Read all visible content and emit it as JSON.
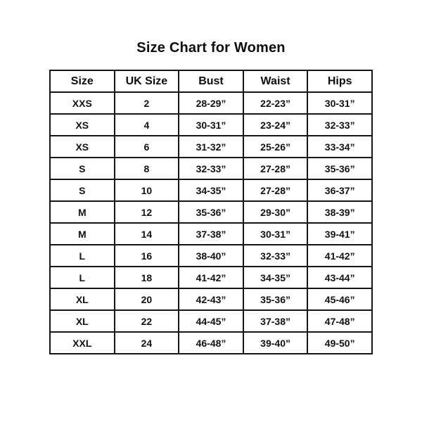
{
  "page": {
    "title": "Size Chart for Women"
  },
  "chart_data": {
    "type": "table",
    "title": "Size Chart for Women",
    "columns": [
      "Size",
      "UK Size",
      "Bust",
      "Waist",
      "Hips"
    ],
    "rows": [
      [
        "XXS",
        "2",
        "28-29”",
        "22-23”",
        "30-31”"
      ],
      [
        "XS",
        "4",
        "30-31”",
        "23-24”",
        "32-33”"
      ],
      [
        "XS",
        "6",
        "31-32”",
        "25-26”",
        "33-34”"
      ],
      [
        "S",
        "8",
        "32-33”",
        "27-28”",
        "35-36”"
      ],
      [
        "S",
        "10",
        "34-35”",
        "27-28”",
        "36-37”"
      ],
      [
        "M",
        "12",
        "35-36”",
        "29-30”",
        "38-39”"
      ],
      [
        "M",
        "14",
        "37-38”",
        "30-31”",
        "39-41”"
      ],
      [
        "L",
        "16",
        "38-40”",
        "32-33”",
        "41-42”"
      ],
      [
        "L",
        "18",
        "41-42”",
        "34-35”",
        "43-44”"
      ],
      [
        "XL",
        "20",
        "42-43”",
        "35-36”",
        "45-46”"
      ],
      [
        "XL",
        "22",
        "44-45”",
        "37-38”",
        "47-48”"
      ],
      [
        "XXL",
        "24",
        "46-48”",
        "39-40”",
        "49-50”"
      ]
    ],
    "layout": {
      "grid": "all-borders",
      "text_align": "center",
      "font_weight": "bold",
      "border_color": "#161616",
      "background": "#ffffff"
    }
  }
}
